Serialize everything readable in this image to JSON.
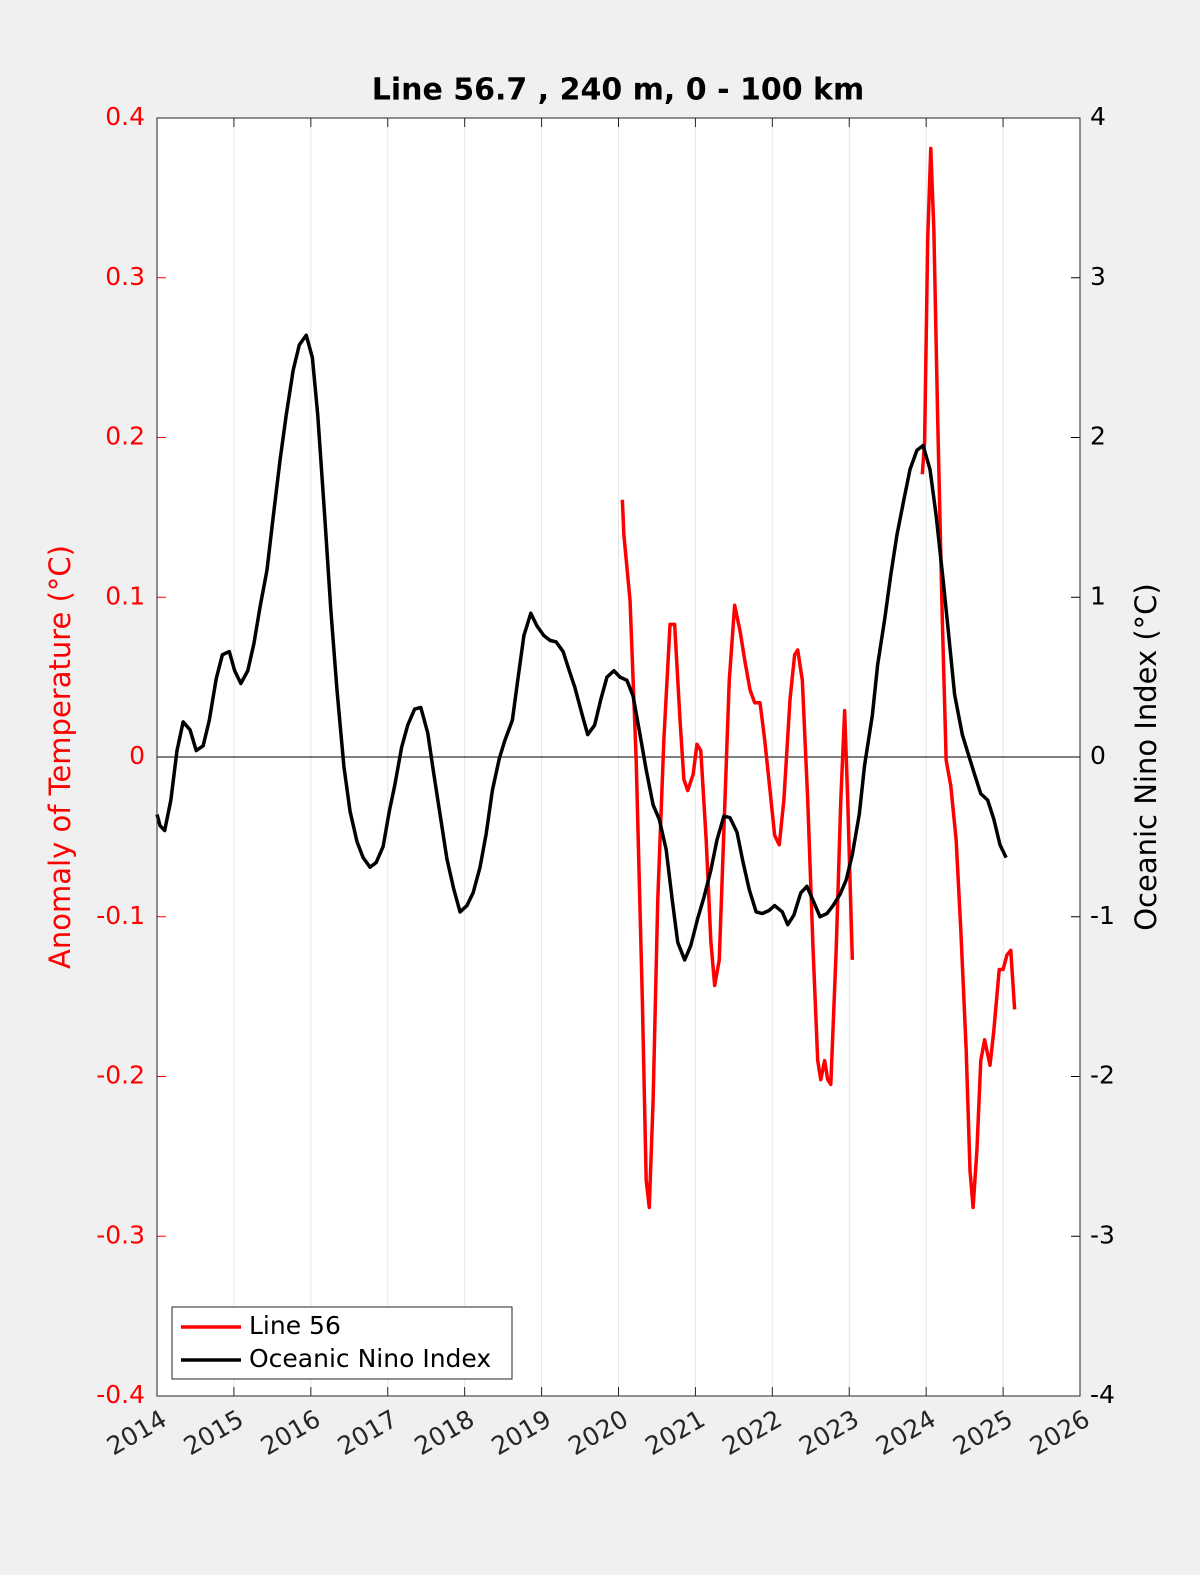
{
  "chart_data": {
    "type": "line",
    "title": "Line 56.7 , 240 m, 0 - 100 km",
    "ylabel": "Anomaly of Temperature (°C)",
    "y2label": "Oceanic Nino Index (°C)",
    "xlim": [
      2014,
      2026
    ],
    "xticks": [
      2014,
      2015,
      2016,
      2017,
      2018,
      2019,
      2020,
      2021,
      2022,
      2023,
      2024,
      2025,
      2026
    ],
    "ylim": [
      -0.4,
      0.4
    ],
    "yticks": [
      -0.4,
      -0.3,
      -0.2,
      -0.1,
      0,
      0.1,
      0.2,
      0.3,
      0.4
    ],
    "y2lim": [
      -4,
      4
    ],
    "y2ticks": [
      -4,
      -3,
      -2,
      -1,
      0,
      1,
      2,
      3,
      4
    ],
    "grid": "x",
    "reference_line": 0,
    "legend": "lower left",
    "ycolor": "#ff0000",
    "y2color": "#000000",
    "series": [
      {
        "name": "Line 56",
        "color": "#ff0000",
        "axis": "y",
        "x": [
          2020.05,
          2020.07,
          2020.15,
          2020.23,
          2020.31,
          2020.36,
          2020.4,
          2020.45,
          2020.51,
          2020.59,
          2020.67,
          2020.73,
          2020.8,
          2020.85,
          2020.9,
          2020.97,
          2021.02,
          2021.07,
          2021.14,
          2021.2,
          2021.25,
          2021.31,
          2021.37,
          2021.44,
          2021.51,
          2021.58,
          2021.64,
          2021.71,
          2021.77,
          2021.84,
          2021.9,
          2021.97,
          2022.03,
          2022.09,
          2022.15,
          2022.23,
          2022.29,
          2022.33,
          2022.39,
          2022.46,
          2022.53,
          2022.59,
          2022.63,
          2022.68,
          2022.72,
          2022.76,
          2022.83,
          2022.89,
          2022.94,
          2022.98,
          2023.04,
          2023.5,
          2023.95,
          2023.98,
          2024.02,
          2024.06,
          2024.1,
          2024.15,
          2024.21,
          2024.26,
          2024.32,
          2024.39,
          2024.45,
          2024.52,
          2024.57,
          2024.61,
          2024.66,
          2024.71,
          2024.76,
          2024.83,
          2024.88,
          2024.95,
          2025.0,
          2025.05,
          2025.1,
          2025.15
        ],
        "values": [
          0.161,
          0.139,
          0.098,
          -0.002,
          -0.152,
          -0.265,
          -0.282,
          -0.215,
          -0.09,
          0.011,
          0.083,
          0.083,
          0.023,
          -0.014,
          -0.021,
          -0.011,
          0.008,
          0.004,
          -0.052,
          -0.115,
          -0.143,
          -0.127,
          -0.046,
          0.048,
          0.095,
          0.079,
          0.061,
          0.042,
          0.034,
          0.034,
          0.011,
          -0.021,
          -0.049,
          -0.055,
          -0.027,
          0.036,
          0.064,
          0.067,
          0.048,
          -0.027,
          -0.121,
          -0.19,
          -0.202,
          -0.19,
          -0.202,
          -0.205,
          -0.121,
          -0.027,
          0.029,
          -0.027,
          -0.127,
          null,
          0.177,
          0.198,
          0.324,
          0.381,
          0.33,
          0.211,
          0.086,
          -0.002,
          -0.018,
          -0.052,
          -0.108,
          -0.183,
          -0.259,
          -0.282,
          -0.246,
          -0.19,
          -0.177,
          -0.193,
          -0.171,
          -0.133,
          -0.133,
          -0.124,
          -0.121,
          -0.158
        ]
      },
      {
        "name": "Oceanic Nino Index",
        "color": "#000000",
        "axis": "y2",
        "x": [
          2014.0,
          2014.04,
          2014.1,
          2014.18,
          2014.26,
          2014.34,
          2014.43,
          2014.51,
          2014.6,
          2014.68,
          2014.77,
          2014.85,
          2014.94,
          2015.01,
          2015.09,
          2015.18,
          2015.26,
          2015.34,
          2015.43,
          2015.51,
          2015.6,
          2015.68,
          2015.77,
          2015.85,
          2015.94,
          2016.02,
          2016.09,
          2016.18,
          2016.26,
          2016.34,
          2016.43,
          2016.51,
          2016.6,
          2016.68,
          2016.77,
          2016.85,
          2016.94,
          2017.02,
          2017.09,
          2017.18,
          2017.26,
          2017.35,
          2017.43,
          2017.52,
          2017.6,
          2017.69,
          2017.77,
          2017.86,
          2017.94,
          2018.03,
          2018.11,
          2018.2,
          2018.28,
          2018.36,
          2018.45,
          2018.52,
          2018.62,
          2018.69,
          2018.77,
          2018.86,
          2018.94,
          2019.03,
          2019.11,
          2019.19,
          2019.28,
          2019.36,
          2019.43,
          2019.53,
          2019.6,
          2019.69,
          2019.77,
          2019.85,
          2019.94,
          2020.02,
          2020.11,
          2020.19,
          2020.28,
          2020.36,
          2020.45,
          2020.53,
          2020.62,
          2020.7,
          2020.77,
          2020.86,
          2020.94,
          2021.03,
          2021.11,
          2021.2,
          2021.28,
          2021.37,
          2021.45,
          2021.54,
          2021.62,
          2021.7,
          2021.79,
          2021.87,
          2021.96,
          2022.03,
          2022.13,
          2022.2,
          2022.28,
          2022.37,
          2022.45,
          2022.54,
          2022.62,
          2022.71,
          2022.79,
          2022.88,
          2022.96,
          2023.04,
          2023.13,
          2023.2,
          2023.3,
          2023.37,
          2023.46,
          2023.54,
          2023.62,
          2023.71,
          2023.79,
          2023.88,
          2023.96,
          2024.05,
          2024.13,
          2024.22,
          2024.3,
          2024.37,
          2024.47,
          2024.54,
          2024.63,
          2024.71,
          2024.8,
          2024.88,
          2024.96,
          2025.04
        ],
        "values": [
          -0.36,
          -0.43,
          -0.46,
          -0.27,
          0.04,
          0.22,
          0.17,
          0.04,
          0.07,
          0.23,
          0.49,
          0.64,
          0.66,
          0.54,
          0.46,
          0.54,
          0.71,
          0.94,
          1.17,
          1.5,
          1.86,
          2.14,
          2.42,
          2.58,
          2.64,
          2.5,
          2.14,
          1.51,
          0.92,
          0.42,
          -0.06,
          -0.34,
          -0.53,
          -0.63,
          -0.69,
          -0.66,
          -0.56,
          -0.34,
          -0.18,
          0.06,
          0.2,
          0.3,
          0.31,
          0.15,
          -0.11,
          -0.39,
          -0.64,
          -0.83,
          -0.97,
          -0.93,
          -0.85,
          -0.69,
          -0.48,
          -0.21,
          -0.01,
          0.1,
          0.23,
          0.48,
          0.76,
          0.9,
          0.82,
          0.76,
          0.73,
          0.72,
          0.66,
          0.54,
          0.44,
          0.26,
          0.14,
          0.2,
          0.36,
          0.5,
          0.54,
          0.5,
          0.48,
          0.38,
          0.14,
          -0.08,
          -0.3,
          -0.39,
          -0.58,
          -0.9,
          -1.16,
          -1.27,
          -1.18,
          -1.01,
          -0.88,
          -0.71,
          -0.52,
          -0.37,
          -0.38,
          -0.47,
          -0.66,
          -0.83,
          -0.97,
          -0.98,
          -0.96,
          -0.93,
          -0.97,
          -1.05,
          -0.99,
          -0.85,
          -0.81,
          -0.91,
          -1.0,
          -0.98,
          -0.93,
          -0.86,
          -0.77,
          -0.61,
          -0.36,
          -0.05,
          0.26,
          0.58,
          0.86,
          1.14,
          1.39,
          1.61,
          1.8,
          1.92,
          1.95,
          1.8,
          1.51,
          1.11,
          0.73,
          0.39,
          0.14,
          0.03,
          -0.11,
          -0.23,
          -0.27,
          -0.39,
          -0.55,
          -0.63
        ]
      }
    ]
  }
}
